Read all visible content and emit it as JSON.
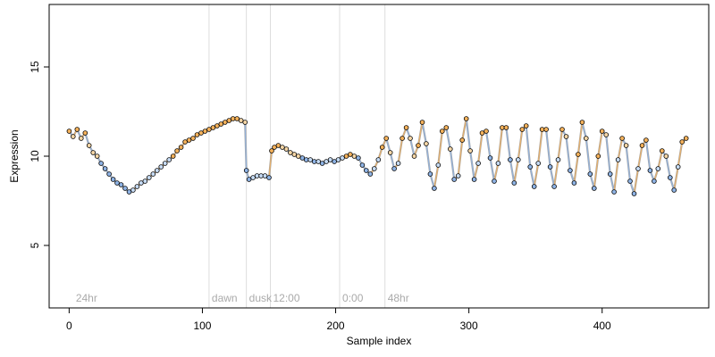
{
  "chart_data": {
    "type": "scatter",
    "title": "",
    "xlabel": "Sample index",
    "ylabel": "Expression",
    "xlim": [
      -15,
      480
    ],
    "ylim": [
      1.5,
      18.5
    ],
    "xticks": [
      0,
      100,
      200,
      300,
      400
    ],
    "yticks": [
      5,
      10,
      15
    ],
    "grid": false,
    "legend": "none",
    "colors": {
      "line": "#a7a7a7",
      "line_fill": "#c0c0c0",
      "orange": "#f5b25b",
      "blue": "#8fb4e6",
      "pale_orange": "#f6d7a7",
      "pale_blue": "#c7dcf5",
      "marker_edge": "#000000",
      "vline": "#dddddd",
      "vlabel": "#aaaaaa"
    },
    "annotations": [
      {
        "label": "24hr",
        "x": 3,
        "line": false
      },
      {
        "label": "dawn",
        "x": 105,
        "line": true
      },
      {
        "label": "dusk",
        "x": 133,
        "line": true
      },
      {
        "label": "12:00",
        "x": 151,
        "line": true
      },
      {
        "label": "0:00",
        "x": 203,
        "line": true
      },
      {
        "label": "48hr",
        "x": 237,
        "line": true
      }
    ],
    "series": [
      {
        "x": [
          0,
          3,
          6,
          9,
          12,
          15,
          18,
          21,
          24,
          27,
          30,
          33,
          36,
          39,
          42,
          45,
          48,
          51,
          54,
          57,
          60,
          63,
          66,
          69,
          72,
          75,
          78,
          81,
          84,
          87,
          90,
          93,
          96,
          99,
          102,
          105,
          108,
          111,
          114,
          117,
          120,
          123,
          126,
          129,
          132,
          133,
          135,
          138,
          141,
          144,
          147,
          150,
          152,
          154,
          157,
          160,
          163,
          166,
          169,
          172,
          175,
          178,
          181,
          184,
          187,
          190,
          193,
          196,
          199,
          202,
          205,
          208,
          211,
          214,
          217,
          220,
          223,
          226,
          229,
          232,
          235,
          238,
          241,
          244,
          247,
          250,
          253,
          256,
          259,
          262,
          265,
          268,
          271,
          274,
          277,
          280,
          283,
          286,
          289,
          292,
          295,
          298,
          301,
          304,
          307,
          310,
          313,
          316,
          319,
          322,
          325,
          328,
          331,
          334,
          337,
          340,
          343,
          346,
          349,
          352,
          355,
          358,
          361,
          364,
          367,
          370,
          373,
          376,
          379,
          382,
          385,
          388,
          391,
          394,
          397,
          400,
          403,
          406,
          409,
          412,
          415,
          418,
          421,
          424,
          427,
          430,
          433,
          436,
          439,
          442,
          445,
          448,
          451,
          454,
          457,
          460,
          463
        ],
        "y": [
          11.4,
          11.1,
          11.5,
          11.0,
          11.3,
          10.6,
          10.2,
          10.0,
          9.6,
          9.3,
          9.0,
          8.7,
          8.5,
          8.4,
          8.2,
          8.0,
          8.1,
          8.3,
          8.5,
          8.6,
          8.8,
          9.0,
          9.2,
          9.4,
          9.6,
          9.8,
          10.0,
          10.3,
          10.5,
          10.8,
          10.9,
          11.0,
          11.2,
          11.3,
          11.4,
          11.5,
          11.6,
          11.7,
          11.8,
          11.9,
          12.0,
          12.1,
          12.1,
          12.0,
          11.9,
          9.2,
          8.7,
          8.8,
          8.9,
          8.9,
          8.9,
          8.8,
          10.3,
          10.5,
          10.6,
          10.5,
          10.4,
          10.2,
          10.1,
          10.0,
          9.9,
          9.8,
          9.8,
          9.7,
          9.7,
          9.6,
          9.7,
          9.8,
          9.7,
          9.8,
          9.9,
          10.0,
          10.1,
          10.0,
          9.9,
          9.5,
          9.2,
          9.0,
          9.3,
          9.8,
          10.5,
          11.0,
          10.2,
          9.3,
          9.6,
          11.0,
          11.6,
          11.0,
          10.0,
          10.6,
          11.9,
          10.7,
          9.0,
          8.2,
          9.5,
          11.4,
          11.6,
          10.4,
          8.7,
          8.9,
          10.9,
          12.1,
          10.3,
          8.7,
          9.6,
          11.3,
          11.4,
          9.9,
          8.6,
          9.6,
          11.6,
          11.6,
          9.8,
          8.5,
          9.8,
          11.5,
          11.7,
          9.4,
          8.3,
          9.6,
          11.5,
          11.5,
          9.4,
          8.3,
          9.8,
          11.5,
          11.1,
          9.2,
          8.5,
          10.1,
          11.9,
          11.0,
          9.0,
          8.2,
          10.0,
          11.4,
          11.2,
          9.0,
          8.0,
          9.8,
          11.0,
          10.6,
          8.6,
          7.9,
          9.3,
          10.6,
          10.9,
          9.2,
          8.6,
          9.3,
          10.3,
          10.0,
          8.8,
          8.1,
          9.4,
          10.8,
          11.0
        ]
      }
    ]
  }
}
